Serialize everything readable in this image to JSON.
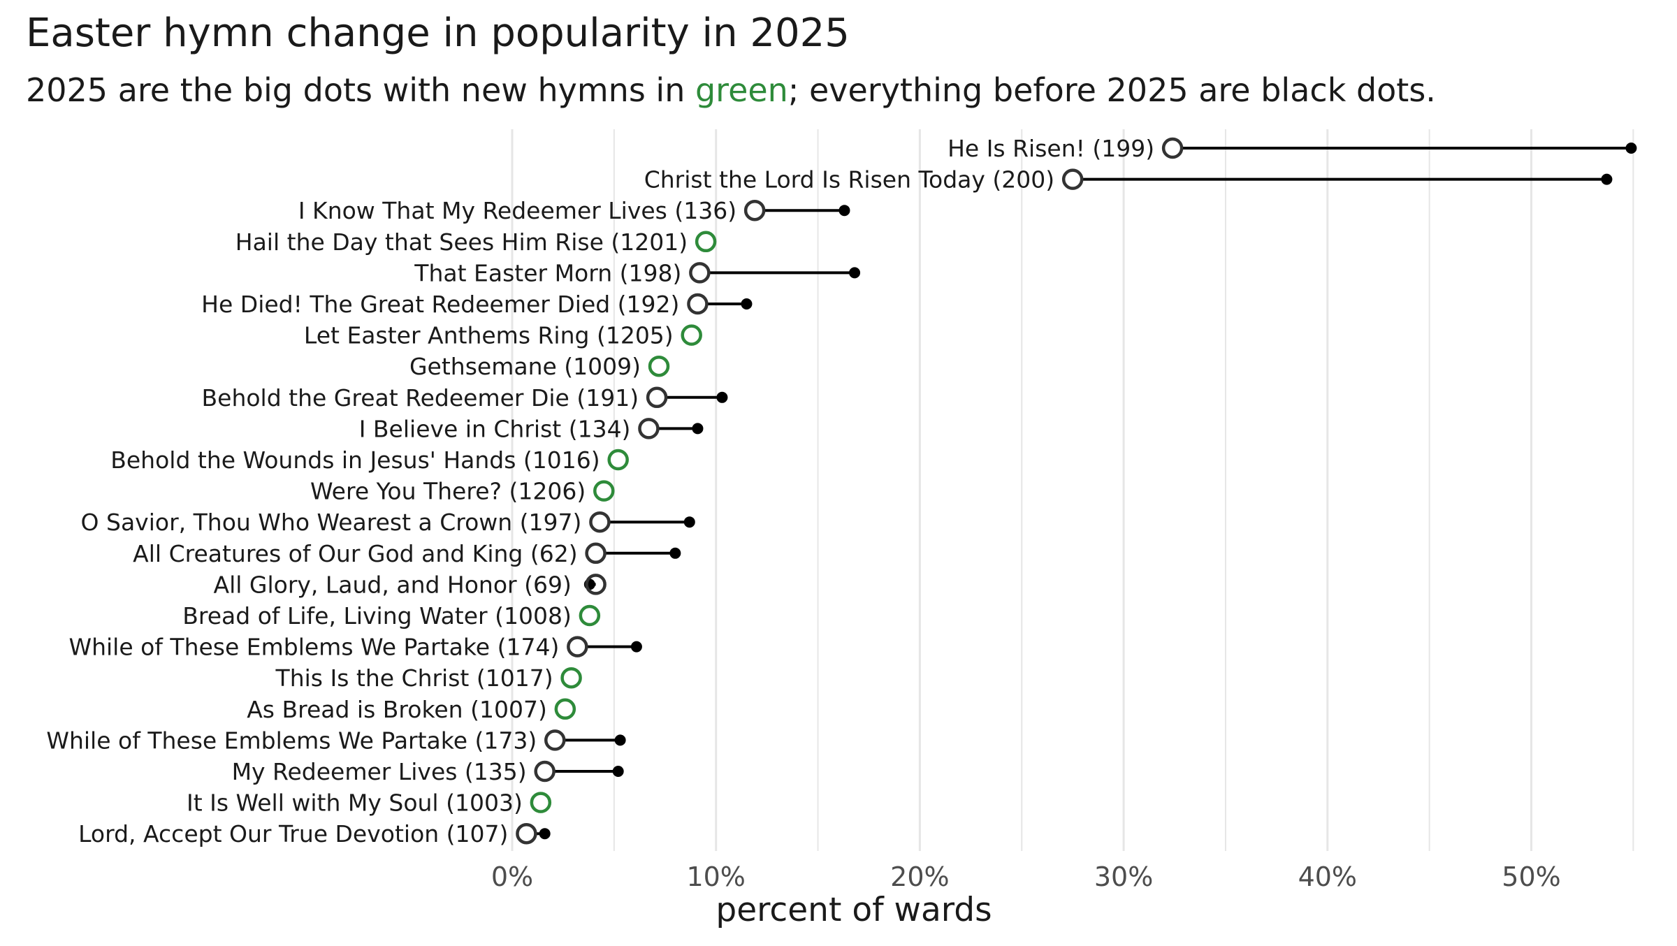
{
  "chart_data": {
    "type": "dumbbell",
    "title": "Easter hymn change in popularity in 2025",
    "subtitle": {
      "before": "2025 are the big dots with new hymns in ",
      "highlight": "green",
      "after": "; everything before 2025 are black dots."
    },
    "xlabel": "percent of wards",
    "xlim": [
      0,
      55
    ],
    "xticks": [
      {
        "value": 0,
        "label": "0%"
      },
      {
        "value": 10,
        "label": "10%"
      },
      {
        "value": 20,
        "label": "20%"
      },
      {
        "value": 30,
        "label": "30%"
      },
      {
        "value": 40,
        "label": "40%"
      },
      {
        "value": 50,
        "label": "50%"
      }
    ],
    "minor_gridlines": [
      5,
      15,
      25,
      35,
      45,
      55
    ],
    "grid": true,
    "colors": {
      "new_hymn": "#2e8b3a",
      "existing_2025": "#333333",
      "before_2025": "#000000",
      "gridline": "#e6e6e6",
      "tick_text": "#4d4d4d"
    },
    "hymns": [
      {
        "label": "He Is Risen! (199)",
        "value_2025": 32.4,
        "value_before": 54.9,
        "new": false
      },
      {
        "label": "Christ the Lord Is Risen Today (200)",
        "value_2025": 27.5,
        "value_before": 53.7,
        "new": false
      },
      {
        "label": "I Know That My Redeemer Lives (136)",
        "value_2025": 11.9,
        "value_before": 16.3,
        "new": false
      },
      {
        "label": "Hail the Day that Sees Him Rise (1201)",
        "value_2025": 9.5,
        "value_before": null,
        "new": true
      },
      {
        "label": "That Easter Morn (198)",
        "value_2025": 9.2,
        "value_before": 16.8,
        "new": false
      },
      {
        "label": "He Died! The Great Redeemer Died (192)",
        "value_2025": 9.1,
        "value_before": 11.5,
        "new": false
      },
      {
        "label": "Let Easter Anthems Ring (1205)",
        "value_2025": 8.8,
        "value_before": null,
        "new": true
      },
      {
        "label": "Gethsemane (1009)",
        "value_2025": 7.2,
        "value_before": null,
        "new": true
      },
      {
        "label": "Behold the Great Redeemer Die (191)",
        "value_2025": 7.1,
        "value_before": 10.3,
        "new": false
      },
      {
        "label": "I Believe in Christ (134)",
        "value_2025": 6.7,
        "value_before": 9.1,
        "new": false
      },
      {
        "label": "Behold the Wounds in Jesus' Hands (1016)",
        "value_2025": 5.2,
        "value_before": null,
        "new": true
      },
      {
        "label": "Were You There? (1206)",
        "value_2025": 4.5,
        "value_before": null,
        "new": true
      },
      {
        "label": "O Savior, Thou Who Wearest a Crown (197)",
        "value_2025": 4.3,
        "value_before": 8.7,
        "new": false
      },
      {
        "label": "All Creatures of Our God and King (62)",
        "value_2025": 4.1,
        "value_before": 8.0,
        "new": false
      },
      {
        "label": "All Glory, Laud, and Honor (69)",
        "value_2025": 4.1,
        "value_before": 3.8,
        "new": false
      },
      {
        "label": "Bread of Life, Living Water (1008)",
        "value_2025": 3.8,
        "value_before": null,
        "new": true
      },
      {
        "label": "While of These Emblems We Partake (174)",
        "value_2025": 3.2,
        "value_before": 6.1,
        "new": false
      },
      {
        "label": "This Is the Christ (1017)",
        "value_2025": 2.9,
        "value_before": null,
        "new": true
      },
      {
        "label": "As Bread is Broken (1007)",
        "value_2025": 2.6,
        "value_before": null,
        "new": true
      },
      {
        "label": "While of These Emblems We Partake (173)",
        "value_2025": 2.1,
        "value_before": 5.3,
        "new": false
      },
      {
        "label": "My Redeemer Lives (135)",
        "value_2025": 1.6,
        "value_before": 5.2,
        "new": false
      },
      {
        "label": "It Is Well with My Soul (1003)",
        "value_2025": 1.4,
        "value_before": null,
        "new": true
      },
      {
        "label": "Lord, Accept Our True Devotion (107)",
        "value_2025": 0.7,
        "value_before": 1.6,
        "new": false
      }
    ]
  }
}
